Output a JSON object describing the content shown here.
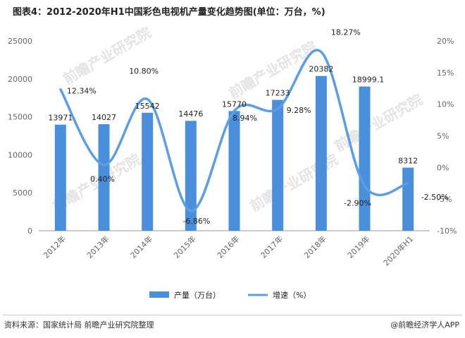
{
  "title": "图表4：2012-2020年H1中国彩色电视机产量变化趋势图(单位：万台，%)",
  "source": "资料来源：国家统计局 前瞻产业研究院整理",
  "brand": "@前瞻经济学人APP",
  "watermark": "前瞻产业研究院",
  "colors": {
    "bar": "#4a8fdc",
    "line": "#5b9ee6",
    "axis": "#666666"
  },
  "chart_data": {
    "type": "bar",
    "categories": [
      "2012年",
      "2013年",
      "2014年",
      "2015年",
      "2016年",
      "2017年",
      "2018年",
      "2019年",
      "2020年H1"
    ],
    "series": [
      {
        "name": "产量（万台）",
        "type": "bar",
        "axis": "left",
        "values": [
          13971,
          14027,
          15542,
          14476,
          15770,
          17233,
          20382,
          18999.1,
          8312
        ],
        "labels": [
          "13971",
          "14027",
          "15542",
          "14476",
          "15770",
          "17233",
          "20382",
          "18999.1",
          "8312"
        ]
      },
      {
        "name": "增速（%）",
        "type": "line",
        "axis": "right",
        "values": [
          12.34,
          0.4,
          10.8,
          -6.86,
          8.94,
          9.28,
          18.27,
          -2.9,
          -2.5
        ],
        "labels": [
          "12.34%",
          "0.40%",
          "10.80%",
          "-6.86%",
          "8.94%",
          "9.28%",
          "18.27%",
          "-2.90%",
          "-2.50%"
        ]
      }
    ],
    "ylim_left": [
      0,
      25000
    ],
    "yticks_left": [
      "0",
      "5000",
      "10000",
      "15000",
      "20000",
      "25000"
    ],
    "ylim_right": [
      -10,
      20
    ],
    "yticks_right": [
      "-10%",
      "-5%",
      "0%",
      "5%",
      "10%",
      "15%",
      "20%"
    ],
    "legend_position": "bottom",
    "grid": false
  }
}
